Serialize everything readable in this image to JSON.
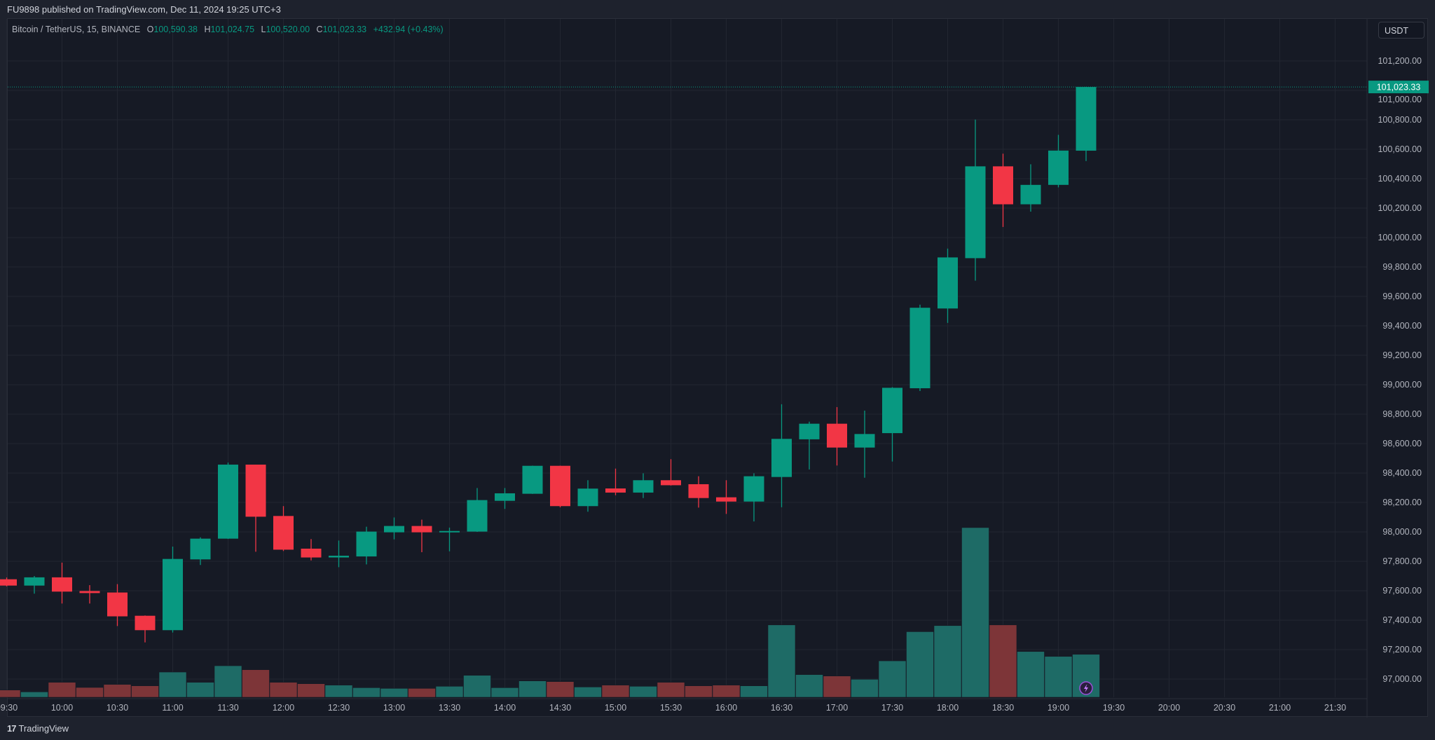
{
  "header": {
    "published": "FU9898 published on TradingView.com, Dec 11, 2024 19:25 UTC+3"
  },
  "legend": {
    "symbol": "Bitcoin / TetherUS, 15, BINANCE",
    "o_label": "O",
    "o": "100,590.38",
    "h_label": "H",
    "h": "101,024.75",
    "l_label": "L",
    "l": "100,520.00",
    "c_label": "C",
    "c": "101,023.33",
    "change": "+432.94 (+0.43%)"
  },
  "price_axis": {
    "currency_button": "USDT",
    "last_price_label": "101,023.33"
  },
  "footer": {
    "logo_mark": "17",
    "brand": "TradingView"
  },
  "colors": {
    "up": "#089981",
    "down": "#f23645",
    "up_volume": "#1e6b66",
    "down_volume": "#7d3538",
    "background": "#161a25",
    "grid": "#222631",
    "text": "#b2b5be"
  },
  "chart_data": {
    "type": "candlestick",
    "interval_minutes": 15,
    "title": "",
    "ylim": [
      96900,
      101330
    ],
    "yticks": [
      "101,200.00",
      "101,000.00",
      "100,800.00",
      "100,600.00",
      "100,400.00",
      "100,200.00",
      "100,000.00",
      "99,800.00",
      "99,600.00",
      "99,400.00",
      "99,200.00",
      "99,000.00",
      "98,800.00",
      "98,600.00",
      "98,400.00",
      "98,200.00",
      "98,000.00",
      "97,800.00",
      "97,600.00",
      "97,400.00",
      "97,200.00",
      "97,000.00"
    ],
    "ytick_values": [
      101200,
      101000,
      100800,
      100600,
      100400,
      100200,
      100000,
      99800,
      99600,
      99400,
      99200,
      99000,
      98800,
      98600,
      98400,
      98200,
      98000,
      97800,
      97600,
      97400,
      97200,
      97000
    ],
    "xticks": [
      "09:30",
      "10:00",
      "10:30",
      "11:00",
      "11:30",
      "12:00",
      "12:30",
      "13:00",
      "13:30",
      "14:00",
      "14:30",
      "15:00",
      "15:30",
      "16:00",
      "16:30",
      "17:00",
      "17:30",
      "18:00",
      "18:30",
      "19:00",
      "19:30",
      "20:00",
      "20:30",
      "21:00",
      "21:30"
    ],
    "grid": true,
    "last_price": 101023.33,
    "columns": [
      "time",
      "open",
      "high",
      "low",
      "close",
      "volume_relative"
    ],
    "candles": [
      [
        "09:30",
        97678,
        97690,
        97630,
        97635,
        31
      ],
      [
        "09:45",
        97635,
        97700,
        97580,
        97691,
        23
      ],
      [
        "10:00",
        97691,
        97791,
        97513,
        97594,
        64
      ],
      [
        "10:15",
        97598,
        97638,
        97513,
        97584,
        42
      ],
      [
        "10:30",
        97588,
        97645,
        97360,
        97426,
        55
      ],
      [
        "10:45",
        97430,
        97432,
        97249,
        97332,
        49
      ],
      [
        "11:00",
        97332,
        97900,
        97316,
        97816,
        108
      ],
      [
        "11:15",
        97813,
        97963,
        97775,
        97954,
        64
      ],
      [
        "11:30",
        97954,
        98471,
        97952,
        98457,
        135
      ],
      [
        "11:45",
        98457,
        98457,
        97865,
        98103,
        118
      ],
      [
        "12:00",
        98108,
        98175,
        97870,
        97879,
        64
      ],
      [
        "12:15",
        97886,
        97951,
        97806,
        97826,
        58
      ],
      [
        "12:30",
        97826,
        97941,
        97760,
        97838,
        52
      ],
      [
        "12:45",
        97833,
        98035,
        97779,
        98002,
        41
      ],
      [
        "13:00",
        97997,
        98098,
        97949,
        98040,
        38
      ],
      [
        "13:15",
        98040,
        98083,
        97862,
        97997,
        38
      ],
      [
        "13:30",
        98000,
        98029,
        97868,
        98006,
        47
      ],
      [
        "13:45",
        98002,
        98298,
        98000,
        98216,
        94
      ],
      [
        "14:00",
        98211,
        98298,
        98156,
        98262,
        41
      ],
      [
        "14:15",
        98259,
        98450,
        98258,
        98449,
        70
      ],
      [
        "14:30",
        98449,
        98450,
        98167,
        98175,
        67
      ],
      [
        "14:45",
        98175,
        98351,
        98137,
        98294,
        44
      ],
      [
        "15:00",
        98295,
        98430,
        98249,
        98267,
        52
      ],
      [
        "15:15",
        98267,
        98398,
        98230,
        98351,
        47
      ],
      [
        "15:30",
        98351,
        98494,
        98315,
        98317,
        64
      ],
      [
        "15:45",
        98324,
        98378,
        98165,
        98230,
        49
      ],
      [
        "16:00",
        98235,
        98351,
        98122,
        98206,
        52
      ],
      [
        "16:15",
        98206,
        98398,
        98071,
        98378,
        49
      ],
      [
        "16:30",
        98373,
        98867,
        98167,
        98632,
        310
      ],
      [
        "16:45",
        98629,
        98749,
        98424,
        98735,
        97
      ],
      [
        "17:00",
        98735,
        98848,
        98451,
        98573,
        91
      ],
      [
        "17:15",
        98573,
        98824,
        98368,
        98665,
        77
      ],
      [
        "17:30",
        98671,
        98983,
        98478,
        98979,
        156
      ],
      [
        "17:45",
        98976,
        99544,
        98957,
        99523,
        281
      ],
      [
        "18:00",
        99518,
        99925,
        99420,
        99865,
        307
      ],
      [
        "18:15",
        99860,
        100802,
        99707,
        100484,
        727
      ],
      [
        "18:30",
        100484,
        100570,
        100072,
        100226,
        310
      ],
      [
        "18:45",
        100226,
        100498,
        100176,
        100358,
        196
      ],
      [
        "19:00",
        100358,
        100698,
        100341,
        100591,
        175
      ],
      [
        "19:15",
        100590.38,
        101024.75,
        100520.0,
        101023.33,
        184
      ]
    ]
  }
}
